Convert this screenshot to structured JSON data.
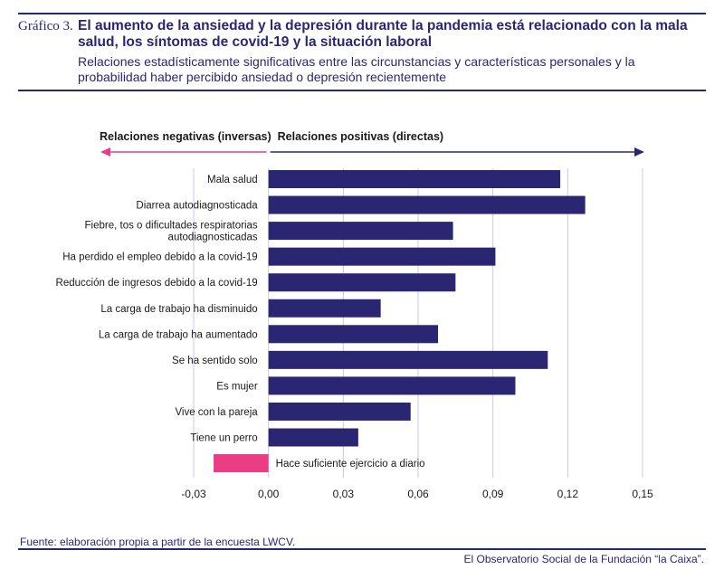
{
  "header": {
    "figure_number": "Gráfico 3.",
    "title": "El aumento de la ansiedad y la depresión durante la pandemia está relacionado con la mala salud, los síntomas de covid-19 y la situación laboral",
    "subtitle": "Relaciones estadísticamente significativas entre las circunstancias y características personales y la probabilidad haber percibido ansiedad o depresión recientemente"
  },
  "colors": {
    "accent": "#2b2672",
    "negative": "#ea3d84",
    "grid": "#c9cbe0"
  },
  "chart_data": {
    "type": "bar",
    "orientation": "horizontal",
    "title": "El aumento de la ansiedad y la depresión durante la pandemia está relacionado con la mala salud, los síntomas de covid-19 y la situación laboral",
    "arrow_labels": {
      "negative": "Relaciones negativas (inversas)",
      "positive": "Relaciones positivas (directas)"
    },
    "categories": [
      [
        "Mala salud"
      ],
      [
        "Diarrea autodiagnosticada"
      ],
      [
        "Fiebre, tos o dificultades respiratorias",
        "autodiagnosticadas"
      ],
      [
        "Ha perdido el empleo debido a la covid-19"
      ],
      [
        "Reducción de ingresos debido a la covid-19"
      ],
      [
        "La carga de trabajo ha disminuido"
      ],
      [
        "La carga de trabajo ha aumentado"
      ],
      [
        "Se ha sentido solo"
      ],
      [
        "Es mujer"
      ],
      [
        "Vive con la pareja"
      ],
      [
        "Tiene un perro"
      ],
      [
        "Hace suficiente ejercicio a diario"
      ]
    ],
    "values": [
      0.117,
      0.127,
      0.074,
      0.091,
      0.075,
      0.045,
      0.068,
      0.112,
      0.099,
      0.057,
      0.036,
      -0.022
    ],
    "xlim": [
      -0.03,
      0.15
    ],
    "ticks": [
      -0.03,
      0.0,
      0.03,
      0.06,
      0.09,
      0.12,
      0.15
    ],
    "tick_labels": [
      "-0,03",
      "0,00",
      "0,03",
      "0,06",
      "0,09",
      "0,12",
      "0,15"
    ],
    "xlabel": "",
    "ylabel": ""
  },
  "footer": {
    "source": "Fuente: elaboración propia a partir de la encuesta LWCV.",
    "credit": "El Observatorio Social de la Fundación “la Caixa”."
  }
}
